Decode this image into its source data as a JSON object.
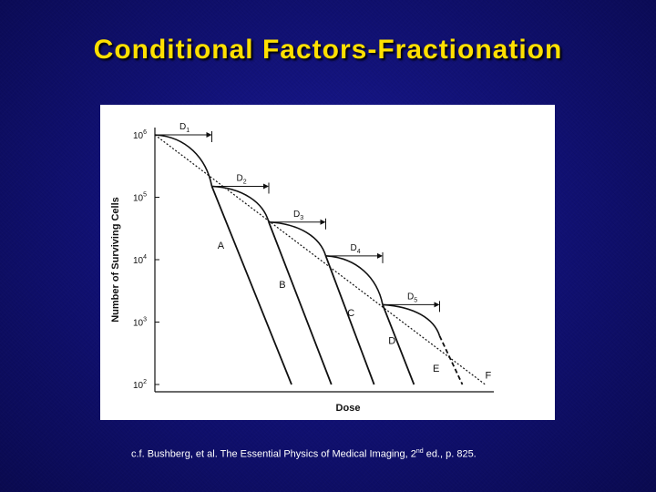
{
  "slide": {
    "title": "Conditional Factors-Fractionation",
    "caption_before": "c.f. Bushberg, et al. The Essential Physics of Medical Imaging, 2",
    "caption_sup": "nd",
    "caption_after": " ed., p. 825."
  },
  "colors": {
    "title": "#ffe000",
    "background": "#101070",
    "figure_background": "#ffffff",
    "lines": "#111111"
  },
  "chart_data": {
    "type": "line",
    "title": "",
    "xlabel": "Dose",
    "ylabel": "Number of Surviving Cells",
    "y_scale": "log",
    "ylim": [
      100,
      1000000
    ],
    "xlim": [
      0,
      6.6
    ],
    "y_ticks": [
      {
        "base": "10",
        "exp": "6",
        "value": 1000000
      },
      {
        "base": "10",
        "exp": "5",
        "value": 100000
      },
      {
        "base": "10",
        "exp": "4",
        "value": 10000
      },
      {
        "base": "10",
        "exp": "3",
        "value": 1000
      },
      {
        "base": "10",
        "exp": "2",
        "value": 100
      }
    ],
    "fraction_labels": [
      {
        "base": "D",
        "sub": "1",
        "from": 0,
        "to": 1
      },
      {
        "base": "D",
        "sub": "2",
        "from": 1,
        "to": 2
      },
      {
        "base": "D",
        "sub": "3",
        "from": 2,
        "to": 3
      },
      {
        "base": "D",
        "sub": "4",
        "from": 3,
        "to": 4
      },
      {
        "base": "D",
        "sub": "5",
        "from": 4,
        "to": 5
      }
    ],
    "fraction_survival": [
      1000000,
      150000,
      40000,
      11500,
      1900
    ],
    "curve_labels": [
      "A",
      "B",
      "C",
      "D",
      "E",
      "F"
    ],
    "series": [
      {
        "name": "A",
        "points": [
          [
            1.0,
            150000
          ],
          [
            2.4,
            100
          ]
        ]
      },
      {
        "name": "B",
        "points": [
          [
            2.0,
            40000
          ],
          [
            3.1,
            100
          ]
        ]
      },
      {
        "name": "C",
        "points": [
          [
            3.0,
            11500
          ],
          [
            3.85,
            100
          ]
        ]
      },
      {
        "name": "D",
        "points": [
          [
            4.0,
            1900
          ],
          [
            4.55,
            100
          ]
        ]
      },
      {
        "name": "E",
        "points": [
          [
            5.0,
            600
          ],
          [
            5.4,
            100
          ]
        ]
      },
      {
        "name": "F",
        "points": [
          [
            0,
            1000000
          ],
          [
            5.8,
            100
          ]
        ]
      }
    ]
  }
}
